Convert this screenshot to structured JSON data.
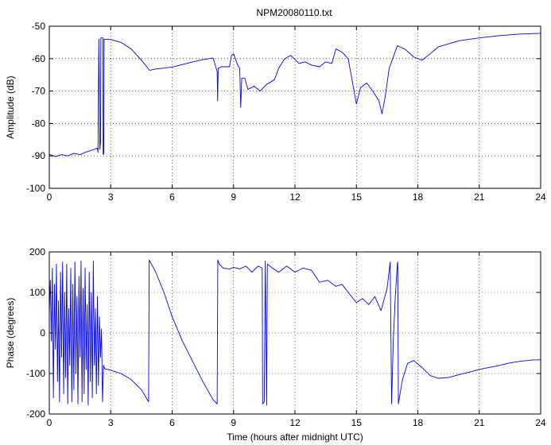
{
  "title": "NPM20080110.txt",
  "colors": {
    "trace": "#0000ff",
    "axes": "#000000",
    "background": "#ffffff"
  },
  "chart_data": [
    {
      "type": "line",
      "name": "amplitude",
      "title": "NPM20080110.txt",
      "xlabel": "",
      "ylabel": "Amplitude (dB)",
      "xlim": [
        0,
        24
      ],
      "ylim": [
        -100,
        -50
      ],
      "xticks": [
        0,
        3,
        6,
        9,
        12,
        15,
        18,
        21,
        24
      ],
      "yticks": [
        -100,
        -90,
        -80,
        -70,
        -60,
        -50
      ],
      "grid": true,
      "series": [
        {
          "points": [
            [
              0,
              -89.5
            ],
            [
              0.3,
              -90.2
            ],
            [
              0.6,
              -89.6
            ],
            [
              0.9,
              -90.0
            ],
            [
              1.2,
              -89.2
            ],
            [
              1.5,
              -89.6
            ],
            [
              1.8,
              -88.8
            ],
            [
              2.1,
              -88.2
            ],
            [
              2.35,
              -87.6
            ],
            [
              2.38,
              -89
            ],
            [
              2.42,
              -54
            ],
            [
              2.47,
              -88
            ],
            [
              2.5,
              -86
            ],
            [
              2.52,
              -53.6
            ],
            [
              2.62,
              -53.6
            ],
            [
              2.63,
              -89.5
            ],
            [
              2.66,
              -89.5
            ],
            [
              2.68,
              -54
            ],
            [
              3.0,
              -54.1
            ],
            [
              3.5,
              -55.0
            ],
            [
              4.0,
              -57.0
            ],
            [
              4.5,
              -60.5
            ],
            [
              4.9,
              -63.6
            ],
            [
              5.2,
              -63.2
            ],
            [
              6.0,
              -62.6
            ],
            [
              7.0,
              -61.0
            ],
            [
              7.5,
              -60.3
            ],
            [
              8.0,
              -59.8
            ],
            [
              8.2,
              -64
            ],
            [
              8.22,
              -73
            ],
            [
              8.25,
              -63
            ],
            [
              8.4,
              -62.5
            ],
            [
              8.8,
              -62.5
            ],
            [
              8.9,
              -59
            ],
            [
              9.0,
              -58.5
            ],
            [
              9.2,
              -62
            ],
            [
              9.3,
              -63
            ],
            [
              9.35,
              -75
            ],
            [
              9.4,
              -66
            ],
            [
              9.55,
              -66
            ],
            [
              9.7,
              -69.5
            ],
            [
              10.0,
              -68.5
            ],
            [
              10.3,
              -70
            ],
            [
              10.6,
              -68
            ],
            [
              11.0,
              -66.5
            ],
            [
              11.2,
              -63
            ],
            [
              11.5,
              -60
            ],
            [
              11.8,
              -59
            ],
            [
              12.2,
              -61.5
            ],
            [
              12.5,
              -61
            ],
            [
              12.8,
              -62
            ],
            [
              13.2,
              -62.5
            ],
            [
              13.5,
              -61
            ],
            [
              13.8,
              -61.5
            ],
            [
              14.0,
              -57
            ],
            [
              14.3,
              -58
            ],
            [
              14.6,
              -60
            ],
            [
              14.8,
              -67
            ],
            [
              15.0,
              -74
            ],
            [
              15.2,
              -69
            ],
            [
              15.5,
              -67.5
            ],
            [
              15.8,
              -70
            ],
            [
              16.1,
              -73
            ],
            [
              16.25,
              -77
            ],
            [
              16.4,
              -72
            ],
            [
              16.6,
              -63
            ],
            [
              17.0,
              -56
            ],
            [
              17.4,
              -57.2
            ],
            [
              17.8,
              -59.5
            ],
            [
              18.2,
              -60.5
            ],
            [
              18.6,
              -58.5
            ],
            [
              19.0,
              -56.4
            ],
            [
              20.0,
              -54.5
            ],
            [
              21.0,
              -53.6
            ],
            [
              22.0,
              -52.9
            ],
            [
              23.0,
              -52.4
            ],
            [
              24.0,
              -52.2
            ]
          ]
        }
      ]
    },
    {
      "type": "line",
      "name": "phase",
      "title": "",
      "xlabel": "Time (hours after midnight UTC)",
      "ylabel": "Phase (degrees)",
      "xlim": [
        0,
        24
      ],
      "ylim": [
        -200,
        200
      ],
      "xticks": [
        0,
        3,
        6,
        9,
        12,
        15,
        18,
        21,
        24
      ],
      "yticks": [
        -200,
        -100,
        0,
        100,
        200
      ],
      "grid": true,
      "series": [
        {
          "points": [
            [
              0,
              50
            ],
            [
              0.05,
              130
            ],
            [
              0.1,
              -20
            ],
            [
              0.15,
              160
            ],
            [
              0.2,
              -160
            ],
            [
              0.25,
              120
            ],
            [
              0.3,
              -40
            ],
            [
              0.35,
              170
            ],
            [
              0.4,
              -120
            ],
            [
              0.45,
              80
            ],
            [
              0.5,
              -170
            ],
            [
              0.55,
              150
            ],
            [
              0.6,
              -60
            ],
            [
              0.65,
              175
            ],
            [
              0.7,
              -150
            ],
            [
              0.75,
              100
            ],
            [
              0.8,
              -110
            ],
            [
              0.85,
              170
            ],
            [
              0.9,
              -175
            ],
            [
              0.95,
              60
            ],
            [
              1.0,
              -80
            ],
            [
              1.05,
              160
            ],
            [
              1.1,
              -170
            ],
            [
              1.15,
              120
            ],
            [
              1.2,
              -140
            ],
            [
              1.25,
              175
            ],
            [
              1.3,
              -100
            ],
            [
              1.35,
              90
            ],
            [
              1.4,
              -175
            ],
            [
              1.45,
              140
            ],
            [
              1.5,
              -60
            ],
            [
              1.55,
              178
            ],
            [
              1.6,
              -170
            ],
            [
              1.65,
              110
            ],
            [
              1.7,
              -150
            ],
            [
              1.75,
              160
            ],
            [
              1.8,
              -90
            ],
            [
              1.85,
              70
            ],
            [
              1.9,
              -178
            ],
            [
              1.95,
              150
            ],
            [
              2.0,
              -120
            ],
            [
              2.05,
              100
            ],
            [
              2.1,
              -160
            ],
            [
              2.15,
              178
            ],
            [
              2.2,
              -80
            ],
            [
              2.25,
              60
            ],
            [
              2.3,
              -150
            ],
            [
              2.35,
              90
            ],
            [
              2.4,
              -130
            ],
            [
              2.45,
              40
            ],
            [
              2.5,
              -60
            ],
            [
              2.55,
              10
            ],
            [
              2.6,
              -170
            ],
            [
              2.65,
              -80
            ],
            [
              2.7,
              -88
            ],
            [
              3.0,
              -92
            ],
            [
              3.5,
              -100
            ],
            [
              4.0,
              -115
            ],
            [
              4.5,
              -140
            ],
            [
              4.85,
              -170
            ],
            [
              4.88,
              180
            ],
            [
              5.2,
              150
            ],
            [
              5.6,
              100
            ],
            [
              6.0,
              40
            ],
            [
              6.5,
              -20
            ],
            [
              7.0,
              -70
            ],
            [
              7.5,
              -120
            ],
            [
              8.0,
              -165
            ],
            [
              8.2,
              -175
            ],
            [
              8.23,
              180
            ],
            [
              8.3,
              170
            ],
            [
              8.5,
              160
            ],
            [
              8.8,
              158
            ],
            [
              9.0,
              162
            ],
            [
              9.3,
              158
            ],
            [
              9.6,
              165
            ],
            [
              9.9,
              150
            ],
            [
              10.2,
              165
            ],
            [
              10.4,
              160
            ],
            [
              10.42,
              -175
            ],
            [
              10.5,
              -170
            ],
            [
              10.55,
              178
            ],
            [
              10.62,
              -178
            ],
            [
              10.65,
              170
            ],
            [
              10.9,
              160
            ],
            [
              11.2,
              150
            ],
            [
              11.6,
              165
            ],
            [
              12.0,
              150
            ],
            [
              12.4,
              160
            ],
            [
              12.8,
              155
            ],
            [
              13.2,
              125
            ],
            [
              13.6,
              130
            ],
            [
              14.0,
              115
            ],
            [
              14.3,
              120
            ],
            [
              14.6,
              100
            ],
            [
              15.0,
              75
            ],
            [
              15.3,
              85
            ],
            [
              15.6,
              70
            ],
            [
              15.9,
              90
            ],
            [
              16.2,
              55
            ],
            [
              16.5,
              110
            ],
            [
              16.65,
              175
            ],
            [
              16.72,
              -175
            ],
            [
              16.8,
              -20
            ],
            [
              16.9,
              90
            ],
            [
              17.0,
              170
            ],
            [
              17.02,
              175
            ],
            [
              17.05,
              -175
            ],
            [
              17.1,
              -160
            ],
            [
              17.25,
              -115
            ],
            [
              17.5,
              -75
            ],
            [
              17.8,
              -68
            ],
            [
              18.2,
              -85
            ],
            [
              18.6,
              -105
            ],
            [
              19.0,
              -112
            ],
            [
              19.5,
              -110
            ],
            [
              20.0,
              -103
            ],
            [
              20.5,
              -97
            ],
            [
              21.0,
              -90
            ],
            [
              21.5,
              -85
            ],
            [
              22.0,
              -80
            ],
            [
              22.5,
              -74
            ],
            [
              23.0,
              -70
            ],
            [
              23.5,
              -67
            ],
            [
              24.0,
              -66
            ]
          ]
        }
      ]
    }
  ]
}
